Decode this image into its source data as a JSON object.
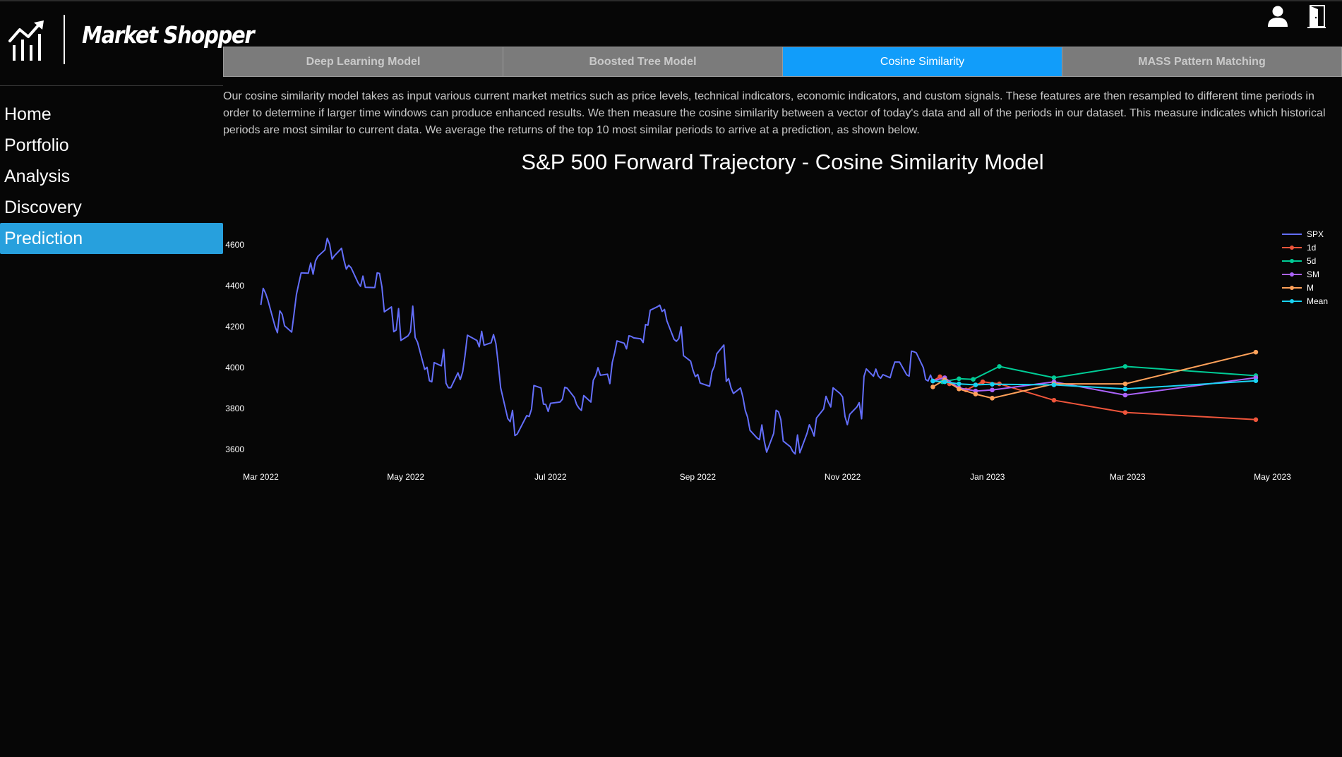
{
  "app": {
    "name": "Market Shopper"
  },
  "header_icons": {
    "user": "user-icon",
    "logout": "door-exit-icon"
  },
  "sidebar": {
    "items": [
      {
        "label": "Home",
        "active": false
      },
      {
        "label": "Portfolio",
        "active": false
      },
      {
        "label": "Analysis",
        "active": false
      },
      {
        "label": "Discovery",
        "active": false
      },
      {
        "label": "Prediction",
        "active": true
      }
    ]
  },
  "tabs": [
    {
      "label": "Deep Learning Model",
      "active": false
    },
    {
      "label": "Boosted Tree Model",
      "active": false
    },
    {
      "label": "Cosine Similarity",
      "active": true
    },
    {
      "label": "MASS Pattern Matching",
      "active": false
    }
  ],
  "description": "Our cosine similarity model takes as input various current market metrics such as price levels, technical indicators, economic indicators, and custom signals. These features are then resampled to different time periods in order to determine if larger time windows can produce enhanced results. We then measure the cosine similarity between a vector of today's data and all of the periods in our dataset. This measure indicates which historical periods are most similar to current data. We average the returns of the top 10 most similar periods to arrive at a prediction, as shown below.",
  "colors": {
    "accent_nav": "#27a0dd",
    "accent_tab": "#119dfa",
    "SPX": "#636efa",
    "1d": "#ef553b",
    "5d": "#00cc96",
    "SM": "#ab63fa",
    "M": "#ffa15a",
    "Mean": "#19d3f3"
  },
  "chart_data": {
    "type": "line",
    "title": "S&P 500 Forward Trajectory - Cosine Similarity Model",
    "xlabel": "",
    "ylabel": "",
    "x_ticks": [
      "Mar 2022",
      "May 2022",
      "Jul 2022",
      "Sep 2022",
      "Nov 2022",
      "Jan 2023",
      "Mar 2023",
      "May 2023"
    ],
    "y_ticks": [
      3600,
      3800,
      4000,
      4200,
      4400,
      4600
    ],
    "x_range": [
      "2022-02-25",
      "2023-05-08"
    ],
    "ylim": [
      3520,
      4700
    ],
    "legend_position": "top-right",
    "grid": false,
    "series": [
      {
        "name": "SPX",
        "mode": "lines",
        "points": [
          [
            "2022-03-01",
            4306
          ],
          [
            "2022-03-02",
            4387
          ],
          [
            "2022-03-03",
            4363
          ],
          [
            "2022-03-04",
            4329
          ],
          [
            "2022-03-07",
            4201
          ],
          [
            "2022-03-08",
            4170
          ],
          [
            "2022-03-09",
            4277
          ],
          [
            "2022-03-10",
            4260
          ],
          [
            "2022-03-11",
            4204
          ],
          [
            "2022-03-14",
            4173
          ],
          [
            "2022-03-15",
            4262
          ],
          [
            "2022-03-16",
            4357
          ],
          [
            "2022-03-17",
            4412
          ],
          [
            "2022-03-18",
            4463
          ],
          [
            "2022-03-21",
            4461
          ],
          [
            "2022-03-22",
            4511
          ],
          [
            "2022-03-23",
            4456
          ],
          [
            "2022-03-24",
            4520
          ],
          [
            "2022-03-25",
            4543
          ],
          [
            "2022-03-28",
            4575
          ],
          [
            "2022-03-29",
            4632
          ],
          [
            "2022-03-30",
            4602
          ],
          [
            "2022-03-31",
            4530
          ],
          [
            "2022-04-01",
            4546
          ],
          [
            "2022-04-04",
            4583
          ],
          [
            "2022-04-05",
            4525
          ],
          [
            "2022-04-06",
            4481
          ],
          [
            "2022-04-07",
            4500
          ],
          [
            "2022-04-08",
            4488
          ],
          [
            "2022-04-11",
            4413
          ],
          [
            "2022-04-12",
            4397
          ],
          [
            "2022-04-13",
            4447
          ],
          [
            "2022-04-14",
            4392
          ],
          [
            "2022-04-18",
            4391
          ],
          [
            "2022-04-19",
            4463
          ],
          [
            "2022-04-20",
            4460
          ],
          [
            "2022-04-21",
            4394
          ],
          [
            "2022-04-22",
            4272
          ],
          [
            "2022-04-25",
            4296
          ],
          [
            "2022-04-26",
            4175
          ],
          [
            "2022-04-27",
            4183
          ],
          [
            "2022-04-28",
            4288
          ],
          [
            "2022-04-29",
            4132
          ],
          [
            "2022-05-02",
            4155
          ],
          [
            "2022-05-03",
            4175
          ],
          [
            "2022-05-04",
            4300
          ],
          [
            "2022-05-05",
            4147
          ],
          [
            "2022-05-06",
            4123
          ],
          [
            "2022-05-09",
            3991
          ],
          [
            "2022-05-10",
            4001
          ],
          [
            "2022-05-11",
            3935
          ],
          [
            "2022-05-12",
            3930
          ],
          [
            "2022-05-13",
            4024
          ],
          [
            "2022-05-16",
            4008
          ],
          [
            "2022-05-17",
            4088
          ],
          [
            "2022-05-18",
            3923
          ],
          [
            "2022-05-19",
            3901
          ],
          [
            "2022-05-20",
            3901
          ],
          [
            "2022-05-23",
            3974
          ],
          [
            "2022-05-24",
            3941
          ],
          [
            "2022-05-25",
            3979
          ],
          [
            "2022-05-26",
            4058
          ],
          [
            "2022-05-27",
            4158
          ],
          [
            "2022-05-31",
            4132
          ],
          [
            "2022-06-01",
            4101
          ],
          [
            "2022-06-02",
            4177
          ],
          [
            "2022-06-03",
            4109
          ],
          [
            "2022-06-06",
            4121
          ],
          [
            "2022-06-07",
            4161
          ],
          [
            "2022-06-08",
            4116
          ],
          [
            "2022-06-09",
            4018
          ],
          [
            "2022-06-10",
            3901
          ],
          [
            "2022-06-13",
            3750
          ],
          [
            "2022-06-14",
            3735
          ],
          [
            "2022-06-15",
            3790
          ],
          [
            "2022-06-16",
            3667
          ],
          [
            "2022-06-17",
            3675
          ],
          [
            "2022-06-21",
            3765
          ],
          [
            "2022-06-22",
            3760
          ],
          [
            "2022-06-23",
            3796
          ],
          [
            "2022-06-24",
            3912
          ],
          [
            "2022-06-27",
            3900
          ],
          [
            "2022-06-28",
            3821
          ],
          [
            "2022-06-29",
            3819
          ],
          [
            "2022-06-30",
            3785
          ],
          [
            "2022-07-01",
            3825
          ],
          [
            "2022-07-05",
            3831
          ],
          [
            "2022-07-06",
            3845
          ],
          [
            "2022-07-07",
            3903
          ],
          [
            "2022-07-08",
            3899
          ],
          [
            "2022-07-11",
            3854
          ],
          [
            "2022-07-12",
            3819
          ],
          [
            "2022-07-13",
            3801
          ],
          [
            "2022-07-14",
            3790
          ],
          [
            "2022-07-15",
            3863
          ],
          [
            "2022-07-18",
            3831
          ],
          [
            "2022-07-19",
            3937
          ],
          [
            "2022-07-20",
            3960
          ],
          [
            "2022-07-21",
            3999
          ],
          [
            "2022-07-22",
            3962
          ],
          [
            "2022-07-25",
            3967
          ],
          [
            "2022-07-26",
            3921
          ],
          [
            "2022-07-27",
            4024
          ],
          [
            "2022-07-28",
            4072
          ],
          [
            "2022-07-29",
            4130
          ],
          [
            "2022-08-01",
            4119
          ],
          [
            "2022-08-02",
            4091
          ],
          [
            "2022-08-03",
            4155
          ],
          [
            "2022-08-04",
            4152
          ],
          [
            "2022-08-05",
            4145
          ],
          [
            "2022-08-08",
            4140
          ],
          [
            "2022-08-09",
            4122
          ],
          [
            "2022-08-10",
            4210
          ],
          [
            "2022-08-11",
            4207
          ],
          [
            "2022-08-12",
            4280
          ],
          [
            "2022-08-15",
            4297
          ],
          [
            "2022-08-16",
            4305
          ],
          [
            "2022-08-17",
            4274
          ],
          [
            "2022-08-18",
            4284
          ],
          [
            "2022-08-19",
            4228
          ],
          [
            "2022-08-22",
            4138
          ],
          [
            "2022-08-23",
            4128
          ],
          [
            "2022-08-24",
            4141
          ],
          [
            "2022-08-25",
            4199
          ],
          [
            "2022-08-26",
            4058
          ],
          [
            "2022-08-29",
            4031
          ],
          [
            "2022-08-30",
            3986
          ],
          [
            "2022-08-31",
            3955
          ],
          [
            "2022-09-01",
            3966
          ],
          [
            "2022-09-02",
            3924
          ],
          [
            "2022-09-06",
            3908
          ],
          [
            "2022-09-07",
            3980
          ],
          [
            "2022-09-08",
            4006
          ],
          [
            "2022-09-09",
            4067
          ],
          [
            "2022-09-12",
            4110
          ],
          [
            "2022-09-13",
            3932
          ],
          [
            "2022-09-14",
            3946
          ],
          [
            "2022-09-15",
            3901
          ],
          [
            "2022-09-16",
            3873
          ],
          [
            "2022-09-19",
            3900
          ],
          [
            "2022-09-20",
            3856
          ],
          [
            "2022-09-21",
            3790
          ],
          [
            "2022-09-22",
            3757
          ],
          [
            "2022-09-23",
            3693
          ],
          [
            "2022-09-26",
            3655
          ],
          [
            "2022-09-27",
            3647
          ],
          [
            "2022-09-28",
            3719
          ],
          [
            "2022-09-29",
            3640
          ],
          [
            "2022-09-30",
            3586
          ],
          [
            "2022-10-03",
            3678
          ],
          [
            "2022-10-04",
            3791
          ],
          [
            "2022-10-05",
            3783
          ],
          [
            "2022-10-06",
            3745
          ],
          [
            "2022-10-07",
            3640
          ],
          [
            "2022-10-10",
            3612
          ],
          [
            "2022-10-11",
            3589
          ],
          [
            "2022-10-12",
            3577
          ],
          [
            "2022-10-13",
            3670
          ],
          [
            "2022-10-14",
            3583
          ],
          [
            "2022-10-17",
            3677
          ],
          [
            "2022-10-18",
            3720
          ],
          [
            "2022-10-19",
            3695
          ],
          [
            "2022-10-20",
            3665
          ],
          [
            "2022-10-21",
            3753
          ],
          [
            "2022-10-24",
            3797
          ],
          [
            "2022-10-25",
            3859
          ],
          [
            "2022-10-26",
            3830
          ],
          [
            "2022-10-27",
            3807
          ],
          [
            "2022-10-28",
            3901
          ],
          [
            "2022-10-31",
            3872
          ],
          [
            "2022-11-01",
            3856
          ],
          [
            "2022-11-02",
            3760
          ],
          [
            "2022-11-03",
            3720
          ],
          [
            "2022-11-04",
            3771
          ],
          [
            "2022-11-07",
            3807
          ],
          [
            "2022-11-08",
            3828
          ],
          [
            "2022-11-09",
            3749
          ],
          [
            "2022-11-10",
            3956
          ],
          [
            "2022-11-11",
            3993
          ],
          [
            "2022-11-14",
            3957
          ],
          [
            "2022-11-15",
            3992
          ],
          [
            "2022-11-16",
            3959
          ],
          [
            "2022-11-17",
            3947
          ],
          [
            "2022-11-18",
            3965
          ],
          [
            "2022-11-21",
            3950
          ],
          [
            "2022-11-22",
            3991
          ],
          [
            "2022-11-23",
            4027
          ],
          [
            "2022-11-25",
            4026
          ],
          [
            "2022-11-28",
            3964
          ],
          [
            "2022-11-29",
            3958
          ],
          [
            "2022-11-30",
            4080
          ],
          [
            "2022-12-01",
            4077
          ],
          [
            "2022-12-02",
            4072
          ],
          [
            "2022-12-05",
            3999
          ],
          [
            "2022-12-06",
            3941
          ],
          [
            "2022-12-07",
            3934
          ],
          [
            "2022-12-08",
            3963
          ],
          [
            "2022-12-09",
            3934
          ]
        ]
      },
      {
        "name": "1d",
        "mode": "lines+markers",
        "points": [
          [
            "2022-12-09",
            3934
          ],
          [
            "2022-12-12",
            3955
          ],
          [
            "2022-12-16",
            3920
          ],
          [
            "2022-12-23",
            3890
          ],
          [
            "2022-12-30",
            3930
          ],
          [
            "2023-01-06",
            3920
          ],
          [
            "2023-01-29",
            3840
          ],
          [
            "2023-02-28",
            3780
          ],
          [
            "2023-04-24",
            3745
          ]
        ]
      },
      {
        "name": "5d",
        "mode": "lines+markers",
        "points": [
          [
            "2022-12-09",
            3934
          ],
          [
            "2022-12-13",
            3930
          ],
          [
            "2022-12-20",
            3945
          ],
          [
            "2022-12-26",
            3942
          ],
          [
            "2023-01-06",
            4005
          ],
          [
            "2023-01-29",
            3950
          ],
          [
            "2023-02-28",
            4005
          ],
          [
            "2023-04-24",
            3960
          ]
        ]
      },
      {
        "name": "SM",
        "mode": "lines+markers",
        "points": [
          [
            "2022-12-09",
            3934
          ],
          [
            "2022-12-14",
            3950
          ],
          [
            "2022-12-20",
            3900
          ],
          [
            "2022-12-27",
            3885
          ],
          [
            "2023-01-03",
            3890
          ],
          [
            "2023-01-29",
            3930
          ],
          [
            "2023-02-28",
            3865
          ],
          [
            "2023-04-24",
            3950
          ]
        ]
      },
      {
        "name": "M",
        "mode": "lines+markers",
        "points": [
          [
            "2022-12-09",
            3905
          ],
          [
            "2022-12-14",
            3940
          ],
          [
            "2022-12-20",
            3895
          ],
          [
            "2022-12-27",
            3870
          ],
          [
            "2023-01-03",
            3850
          ],
          [
            "2023-01-29",
            3920
          ],
          [
            "2023-02-28",
            3920
          ],
          [
            "2023-04-24",
            4075
          ]
        ]
      },
      {
        "name": "Mean",
        "mode": "lines+markers",
        "points": [
          [
            "2022-12-09",
            3934
          ],
          [
            "2022-12-14",
            3930
          ],
          [
            "2022-12-20",
            3920
          ],
          [
            "2022-12-27",
            3915
          ],
          [
            "2023-01-03",
            3918
          ],
          [
            "2023-01-29",
            3915
          ],
          [
            "2023-02-28",
            3895
          ],
          [
            "2023-04-24",
            3935
          ]
        ]
      }
    ]
  }
}
